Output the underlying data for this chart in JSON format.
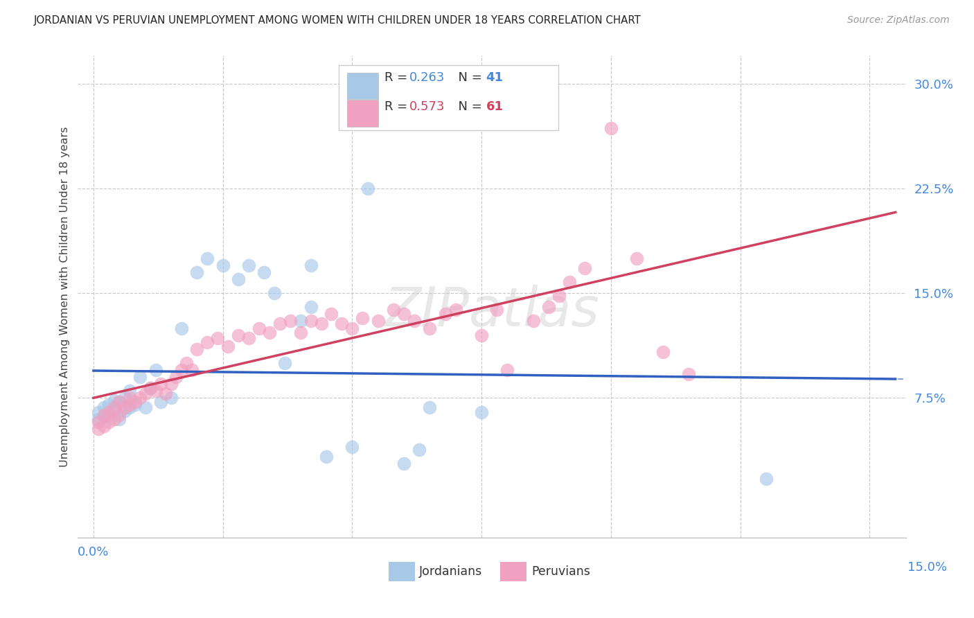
{
  "title": "JORDANIAN VS PERUVIAN UNEMPLOYMENT AMONG WOMEN WITH CHILDREN UNDER 18 YEARS CORRELATION CHART",
  "source": "Source: ZipAtlas.com",
  "ylabel": "Unemployment Among Women with Children Under 18 years",
  "jordan_R": "0.263",
  "jordan_N": "41",
  "peru_R": "0.573",
  "peru_N": "61",
  "jordan_color": "#A8C8E8",
  "peru_color": "#F0A0C0",
  "jordan_line_color": "#3060C0",
  "peru_line_color": "#D04060",
  "legend_label_jordan": "Jordanians",
  "legend_label_peru": "Peruvians",
  "xlim": [
    -0.003,
    0.157
  ],
  "ylim": [
    -0.025,
    0.32
  ],
  "x_ticks": [
    0.0,
    0.025,
    0.05,
    0.075,
    0.1,
    0.125,
    0.15
  ],
  "y_ticks": [
    0.075,
    0.15,
    0.225,
    0.3
  ],
  "jordan_x": [
    0.001,
    0.001,
    0.002,
    0.002,
    0.003,
    0.003,
    0.004,
    0.004,
    0.005,
    0.005,
    0.006,
    0.006,
    0.007,
    0.007,
    0.008,
    0.009,
    0.01,
    0.011,
    0.012,
    0.013,
    0.015,
    0.017,
    0.02,
    0.022,
    0.025,
    0.028,
    0.03,
    0.033,
    0.035,
    0.037,
    0.04,
    0.042,
    0.042,
    0.045,
    0.05,
    0.053,
    0.06,
    0.063,
    0.065,
    0.075,
    0.13
  ],
  "jordan_y": [
    0.06,
    0.065,
    0.062,
    0.068,
    0.063,
    0.07,
    0.067,
    0.073,
    0.06,
    0.072,
    0.066,
    0.075,
    0.068,
    0.08,
    0.07,
    0.09,
    0.068,
    0.082,
    0.095,
    0.072,
    0.075,
    0.125,
    0.165,
    0.175,
    0.17,
    0.16,
    0.17,
    0.165,
    0.15,
    0.1,
    0.13,
    0.14,
    0.17,
    0.033,
    0.04,
    0.225,
    0.028,
    0.038,
    0.068,
    0.065,
    0.017
  ],
  "peru_x": [
    0.001,
    0.001,
    0.002,
    0.002,
    0.003,
    0.003,
    0.004,
    0.004,
    0.005,
    0.005,
    0.006,
    0.007,
    0.007,
    0.008,
    0.009,
    0.01,
    0.011,
    0.012,
    0.013,
    0.014,
    0.015,
    0.016,
    0.017,
    0.018,
    0.019,
    0.02,
    0.022,
    0.024,
    0.026,
    0.028,
    0.03,
    0.032,
    0.034,
    0.036,
    0.038,
    0.04,
    0.042,
    0.044,
    0.046,
    0.048,
    0.05,
    0.052,
    0.055,
    0.058,
    0.06,
    0.062,
    0.065,
    0.068,
    0.07,
    0.075,
    0.078,
    0.08,
    0.085,
    0.088,
    0.09,
    0.092,
    0.095,
    0.1,
    0.105,
    0.11,
    0.115
  ],
  "peru_y": [
    0.053,
    0.058,
    0.055,
    0.063,
    0.058,
    0.065,
    0.06,
    0.068,
    0.063,
    0.072,
    0.068,
    0.07,
    0.075,
    0.072,
    0.075,
    0.078,
    0.082,
    0.08,
    0.085,
    0.078,
    0.085,
    0.09,
    0.095,
    0.1,
    0.095,
    0.11,
    0.115,
    0.118,
    0.112,
    0.12,
    0.118,
    0.125,
    0.122,
    0.128,
    0.13,
    0.122,
    0.13,
    0.128,
    0.135,
    0.128,
    0.125,
    0.132,
    0.13,
    0.138,
    0.135,
    0.13,
    0.125,
    0.135,
    0.138,
    0.12,
    0.138,
    0.095,
    0.13,
    0.14,
    0.148,
    0.158,
    0.168,
    0.268,
    0.175,
    0.108,
    0.092
  ]
}
